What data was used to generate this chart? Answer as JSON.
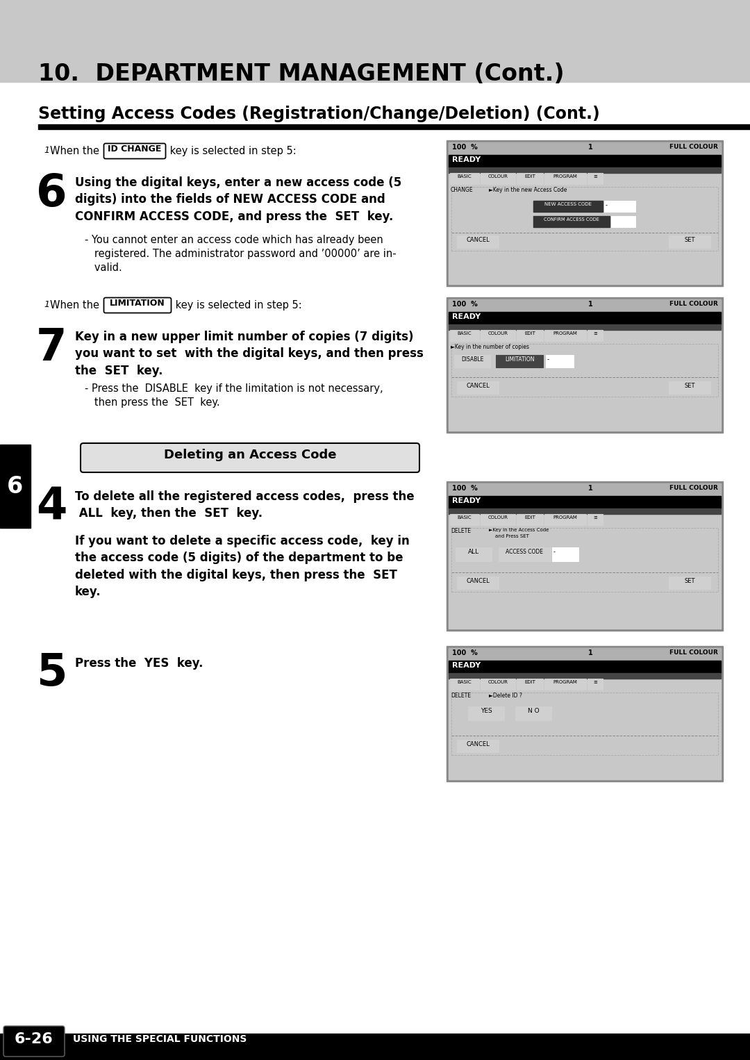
{
  "title": "10.  DEPARTMENT MANAGEMENT (Cont.)",
  "subtitle": "Setting Access Codes (Registration/Change/Deletion) (Cont.)",
  "bg_color": "#ffffff",
  "header_bg": "#c8c8c8",
  "page_label": "6-26",
  "page_footer": "USING THE SPECIAL FUNCTIONS",
  "left_tab": "6",
  "screen_bg": "#d0d0d0",
  "screen_border": "#666666",
  "btn_bg": "#d8d8d8",
  "ready_bg": "#000000",
  "dark_strip": "#555555"
}
